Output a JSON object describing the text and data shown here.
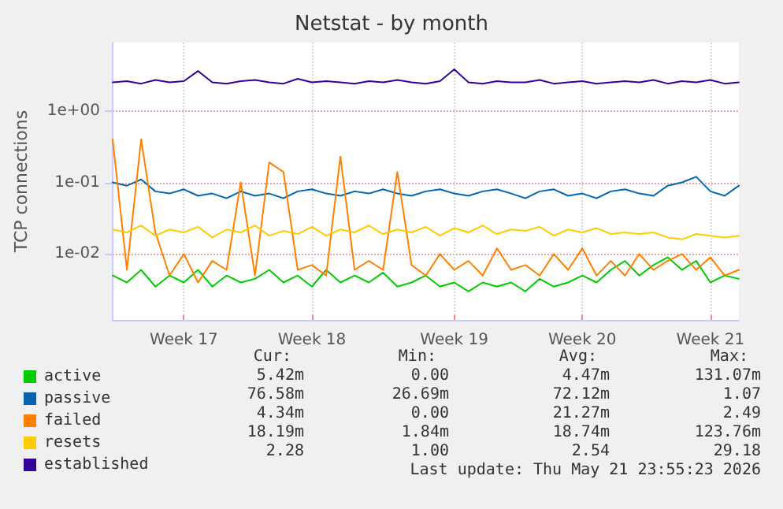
{
  "chart_data": {
    "type": "line",
    "title": "Netstat - by month",
    "ylabel": "TCP connections",
    "categories": [
      null,
      null,
      null,
      null,
      null,
      "Week 17",
      null,
      null,
      null,
      null,
      null,
      null,
      null,
      null,
      "Week 18",
      null,
      null,
      null,
      null,
      null,
      null,
      null,
      null,
      null,
      "Week 19",
      null,
      null,
      null,
      null,
      null,
      null,
      null,
      null,
      "Week 20",
      null,
      null,
      null,
      null,
      null,
      null,
      null,
      null,
      "Week 21",
      null,
      null
    ],
    "series": [
      {
        "name": "active",
        "color": "#00cc00",
        "values": [
          0.005,
          0.004,
          0.006,
          0.0035,
          0.005,
          0.004,
          0.006,
          0.0035,
          0.005,
          0.004,
          0.0045,
          0.006,
          0.004,
          0.005,
          0.0035,
          0.006,
          0.004,
          0.005,
          0.004,
          0.0055,
          0.0035,
          0.004,
          0.005,
          0.0035,
          0.004,
          0.003,
          0.004,
          0.0035,
          0.004,
          0.003,
          0.0045,
          0.0035,
          0.004,
          0.005,
          0.004,
          0.006,
          0.008,
          0.005,
          0.007,
          0.009,
          0.006,
          0.008,
          0.004,
          0.005,
          0.0045
        ]
      },
      {
        "name": "passive",
        "color": "#0066b3",
        "values": [
          0.1,
          0.09,
          0.11,
          0.075,
          0.07,
          0.08,
          0.065,
          0.07,
          0.06,
          0.075,
          0.065,
          0.07,
          0.06,
          0.075,
          0.08,
          0.07,
          0.065,
          0.075,
          0.07,
          0.08,
          0.07,
          0.065,
          0.075,
          0.08,
          0.07,
          0.065,
          0.075,
          0.08,
          0.07,
          0.06,
          0.075,
          0.08,
          0.065,
          0.07,
          0.06,
          0.075,
          0.08,
          0.07,
          0.065,
          0.09,
          0.1,
          0.12,
          0.075,
          0.065,
          0.09
        ]
      },
      {
        "name": "failed",
        "color": "#ff8000",
        "values": [
          0.4,
          0.006,
          0.4,
          0.02,
          0.005,
          0.01,
          0.004,
          0.008,
          0.006,
          0.1,
          0.005,
          0.19,
          0.14,
          0.006,
          0.007,
          0.005,
          0.23,
          0.006,
          0.008,
          0.006,
          0.14,
          0.007,
          0.005,
          0.01,
          0.006,
          0.008,
          0.005,
          0.012,
          0.006,
          0.007,
          0.005,
          0.01,
          0.006,
          0.012,
          0.005,
          0.008,
          0.005,
          0.01,
          0.006,
          0.008,
          0.01,
          0.006,
          0.009,
          0.005,
          0.006
        ]
      },
      {
        "name": "resets",
        "color": "#ffcc00",
        "values": [
          0.022,
          0.02,
          0.025,
          0.018,
          0.022,
          0.02,
          0.024,
          0.017,
          0.022,
          0.02,
          0.025,
          0.018,
          0.021,
          0.019,
          0.024,
          0.018,
          0.022,
          0.02,
          0.025,
          0.019,
          0.022,
          0.02,
          0.024,
          0.018,
          0.023,
          0.02,
          0.025,
          0.019,
          0.022,
          0.021,
          0.024,
          0.018,
          0.022,
          0.02,
          0.023,
          0.019,
          0.02,
          0.019,
          0.02,
          0.017,
          0.016,
          0.019,
          0.018,
          0.017,
          0.018
        ]
      },
      {
        "name": "established",
        "color": "#330099",
        "values": [
          2.5,
          2.6,
          2.4,
          2.7,
          2.5,
          2.6,
          3.6,
          2.5,
          2.4,
          2.6,
          2.7,
          2.5,
          2.4,
          2.8,
          2.5,
          2.6,
          2.5,
          2.4,
          2.6,
          2.5,
          2.7,
          2.5,
          2.4,
          2.6,
          3.8,
          2.5,
          2.4,
          2.6,
          2.5,
          2.5,
          2.7,
          2.4,
          2.5,
          2.6,
          2.4,
          2.5,
          2.6,
          2.5,
          2.7,
          2.4,
          2.6,
          2.5,
          2.7,
          2.4,
          2.5
        ]
      }
    ],
    "ylim": [
      0.0012,
      9
    ],
    "yticks": [
      {
        "value": 0.01,
        "label": "1e-02"
      },
      {
        "value": 0.1,
        "label": "1e-01"
      },
      {
        "value": 1,
        "label": "1e+00"
      }
    ],
    "log": "y",
    "grid": true,
    "legend": "bottom left",
    "marker": "none",
    "line_style": "solid",
    "annotations": [
      "Cur:",
      "Min:",
      "Avg:",
      "Max:",
      "5.42m",
      "0.00",
      "4.47m",
      "131.07m",
      "76.58m",
      "26.69m",
      "72.12m",
      "1.07",
      "4.34m",
      "0.00",
      "21.27m",
      "2.49",
      "18.19m",
      "1.84m",
      "18.74m",
      "123.76m",
      "2.28",
      "1.00",
      "2.54",
      "29.18",
      "Last update: Thu May 21 23:55:23 2026"
    ]
  }
}
